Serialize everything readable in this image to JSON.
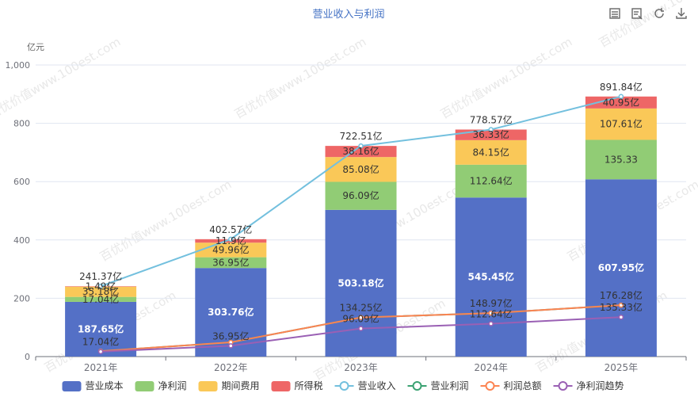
{
  "chart_data": {
    "type": "bar",
    "title": "营业收入与利润",
    "unit": "亿元",
    "categories": [
      "2021年",
      "2022年",
      "2023年",
      "2024年",
      "2025年"
    ],
    "ylim": [
      0,
      1000
    ],
    "yticks": [
      0,
      200,
      400,
      600,
      800,
      1000
    ],
    "ytick_labels": [
      "0",
      "200",
      "400",
      "600",
      "800",
      "1,000"
    ],
    "grid": true,
    "legend_position": "bottom",
    "stacked_series": [
      {
        "name": "营业成本",
        "color": "#5470c6",
        "values": [
          187.65,
          303.76,
          503.18,
          545.45,
          607.95
        ],
        "labels": [
          "187.65亿",
          "303.76亿",
          "503.18亿",
          "545.45亿",
          "607.95亿"
        ]
      },
      {
        "name": "净利润",
        "color": "#91cc75",
        "values": [
          17.04,
          36.95,
          96.09,
          112.64,
          135.33
        ],
        "labels": [
          "17.04亿",
          "36.95亿",
          "96.09亿",
          "112.64亿",
          "135.33"
        ]
      },
      {
        "name": "期间费用",
        "color": "#fac858",
        "values": [
          35.18,
          49.96,
          85.08,
          84.15,
          107.61
        ],
        "labels": [
          "35.18亿",
          "49.96亿",
          "85.08亿",
          "84.15亿",
          "107.61亿"
        ]
      },
      {
        "name": "所得税",
        "color": "#ee6666",
        "values": [
          1.49,
          11.9,
          38.16,
          36.33,
          40.95
        ],
        "labels": [
          "1.49亿",
          "11.9亿",
          "38.16亿",
          "36.33亿",
          "40.95亿"
        ]
      }
    ],
    "line_series": [
      {
        "name": "营业收入",
        "color": "#73c0de",
        "values": [
          241.37,
          402.57,
          722.51,
          778.57,
          891.84
        ],
        "labels": [
          "241.37亿",
          "402.57亿",
          "722.51亿",
          "778.57亿",
          "891.84亿"
        ]
      },
      {
        "name": "营业利润",
        "color": "#3ba272",
        "values": [
          18.53,
          48.85,
          134.25,
          148.97,
          176.28
        ],
        "labels": [
          "",
          "",
          "",
          "",
          ""
        ]
      },
      {
        "name": "利润总额",
        "color": "#fc8452",
        "values": [
          18.53,
          48.85,
          134.25,
          148.97,
          176.28
        ],
        "labels": [
          "",
          "",
          "134.25亿",
          "148.97亿",
          "176.28亿"
        ]
      },
      {
        "name": "净利润趋势",
        "color": "#9a60b4",
        "values": [
          17.04,
          36.95,
          96.09,
          112.64,
          135.33
        ],
        "labels": [
          "17.04亿",
          "36.95亿",
          "96.09亿",
          "112.64亿",
          "135.33亿"
        ]
      }
    ],
    "watermark": "百优价值www.100est.com"
  },
  "toolbar": {
    "items": [
      {
        "name": "data-view-icon"
      },
      {
        "name": "restore-icon"
      },
      {
        "name": "refresh-icon"
      },
      {
        "name": "download-icon"
      }
    ]
  }
}
